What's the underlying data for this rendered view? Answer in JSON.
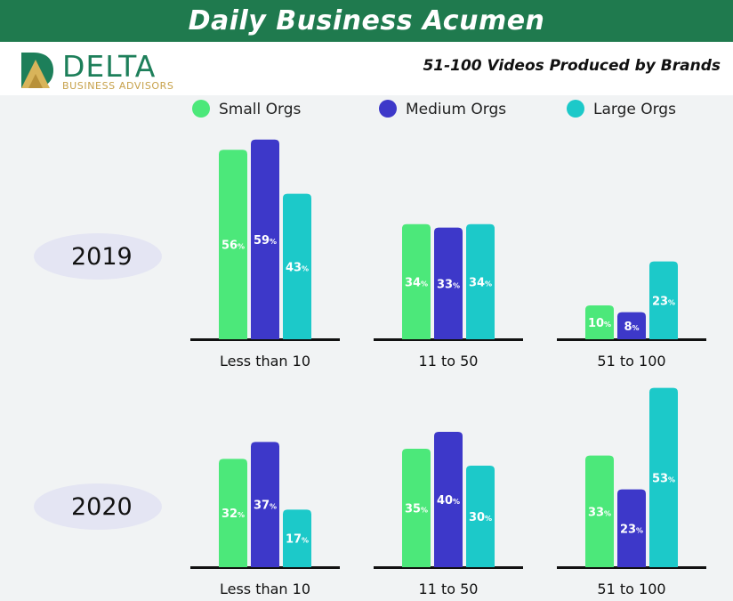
{
  "header": {
    "title": "Daily Business Acumen",
    "subtitle": "51-100 Videos Produced by Brands"
  },
  "logo": {
    "wordmark": "DELTA",
    "tagline": "BUSINESS ADVISORS"
  },
  "colors": {
    "banner": "#1f7a4e",
    "small": "#4ce87a",
    "medium": "#3d38c9",
    "large": "#1cc9c9",
    "baseline": "#111111"
  },
  "chart_data": {
    "type": "bar",
    "categories": [
      "Less than 10",
      "11 to 50",
      "51 to 100"
    ],
    "panels": [
      {
        "label": "2019",
        "series": [
          {
            "name": "Small Orgs",
            "values": [
              56,
              34,
              10
            ]
          },
          {
            "name": "Medium Orgs",
            "values": [
              59,
              33,
              8
            ]
          },
          {
            "name": "Large Orgs",
            "values": [
              43,
              34,
              23
            ]
          }
        ]
      },
      {
        "label": "2020",
        "series": [
          {
            "name": "Small Orgs",
            "values": [
              32,
              35,
              33
            ]
          },
          {
            "name": "Medium Orgs",
            "values": [
              37,
              40,
              23
            ]
          },
          {
            "name": "Large Orgs",
            "values": [
              17,
              30,
              53
            ]
          }
        ]
      }
    ],
    "value_suffix": "%",
    "legend": [
      "Small Orgs",
      "Medium Orgs",
      "Large Orgs"
    ],
    "legend_position": "top",
    "grid": false
  }
}
